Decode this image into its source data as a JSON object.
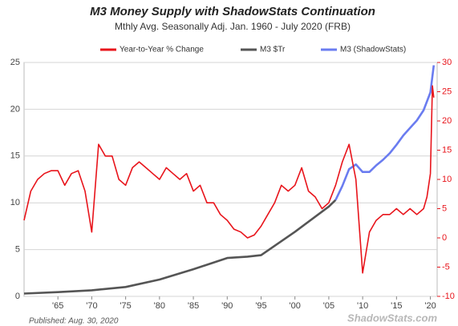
{
  "chart_data": {
    "type": "line",
    "title": "M3 Money Supply with ShadowStats Continuation",
    "subtitle": "Mthly Avg. Seasonally Adj. Jan. 1960 - July 2020  (FRB)",
    "publisher_note": "Published: Aug. 30, 2020",
    "watermark": "ShadowStats.com",
    "xlim": [
      1960,
      2021
    ],
    "xticks": [
      {
        "value": 1965,
        "label": "'65"
      },
      {
        "value": 1970,
        "label": "'70"
      },
      {
        "value": 1975,
        "label": "'75"
      },
      {
        "value": 1980,
        "label": "'80"
      },
      {
        "value": 1985,
        "label": "'85"
      },
      {
        "value": 1990,
        "label": "'90"
      },
      {
        "value": 1995,
        "label": "'95"
      },
      {
        "value": 2000,
        "label": "'00"
      },
      {
        "value": 2005,
        "label": "'05"
      },
      {
        "value": 2010,
        "label": "'10"
      },
      {
        "value": 2015,
        "label": "'15"
      },
      {
        "value": 2020,
        "label": "'20"
      }
    ],
    "ylim": [
      0,
      25
    ],
    "yticks": [
      0,
      5,
      10,
      15,
      20,
      25
    ],
    "y2lim": [
      -10,
      30
    ],
    "y2ticks": [
      -10,
      -5,
      0,
      5,
      10,
      15,
      20,
      25,
      30
    ],
    "grid": true,
    "legend": "top",
    "series": [
      {
        "name": "Year-to-Year % Change",
        "color": "#e8141b",
        "axis": "y2",
        "x": [
          1960,
          1961,
          1962,
          1963,
          1964,
          1965,
          1966,
          1967,
          1968,
          1969,
          1970,
          1971,
          1972,
          1973,
          1974,
          1975,
          1976,
          1977,
          1978,
          1979,
          1980,
          1981,
          1982,
          1983,
          1984,
          1985,
          1986,
          1987,
          1988,
          1989,
          1990,
          1991,
          1992,
          1993,
          1994,
          1995,
          1996,
          1997,
          1998,
          1999,
          2000,
          2001,
          2002,
          2003,
          2004,
          2005,
          2006,
          2007,
          2008,
          2009,
          2010,
          2011,
          2012,
          2013,
          2014,
          2015,
          2016,
          2017,
          2018,
          2019,
          2019.5,
          2020,
          2020.3,
          2020.5
        ],
        "values": [
          3,
          8,
          10,
          11,
          11.5,
          11.5,
          9,
          11,
          11.5,
          8,
          1,
          16,
          14,
          14,
          10,
          9,
          12,
          13,
          12,
          11,
          10,
          12,
          11,
          10,
          11,
          8,
          9,
          6,
          6,
          4,
          3,
          1.5,
          1,
          0,
          0.5,
          2,
          4,
          6,
          9,
          8,
          9,
          12,
          8,
          7,
          5,
          6,
          9,
          13,
          16,
          10,
          -6,
          1,
          3,
          4,
          4,
          5,
          4,
          5,
          4,
          5,
          7,
          11,
          26,
          24
        ]
      },
      {
        "name": "M3 $Tr",
        "color": "#555555",
        "x": [
          1960,
          1965,
          1970,
          1975,
          1980,
          1985,
          1990,
          1993,
          1995,
          2000,
          2005,
          2006
        ],
        "values": [
          0.3,
          0.45,
          0.65,
          1.0,
          1.8,
          2.9,
          4.1,
          4.25,
          4.4,
          6.9,
          9.6,
          10.3
        ]
      },
      {
        "name": "M3 (ShadowStats)",
        "color": "#6a7cf0",
        "x": [
          2006,
          2007,
          2008,
          2009,
          2010,
          2011,
          2012,
          2013,
          2014,
          2015,
          2016,
          2017,
          2018,
          2019,
          2020,
          2020.5
        ],
        "values": [
          10.3,
          11.8,
          13.6,
          14.1,
          13.3,
          13.3,
          14,
          14.6,
          15.3,
          16.2,
          17.2,
          18,
          18.8,
          19.9,
          21.8,
          24.7
        ]
      }
    ]
  }
}
